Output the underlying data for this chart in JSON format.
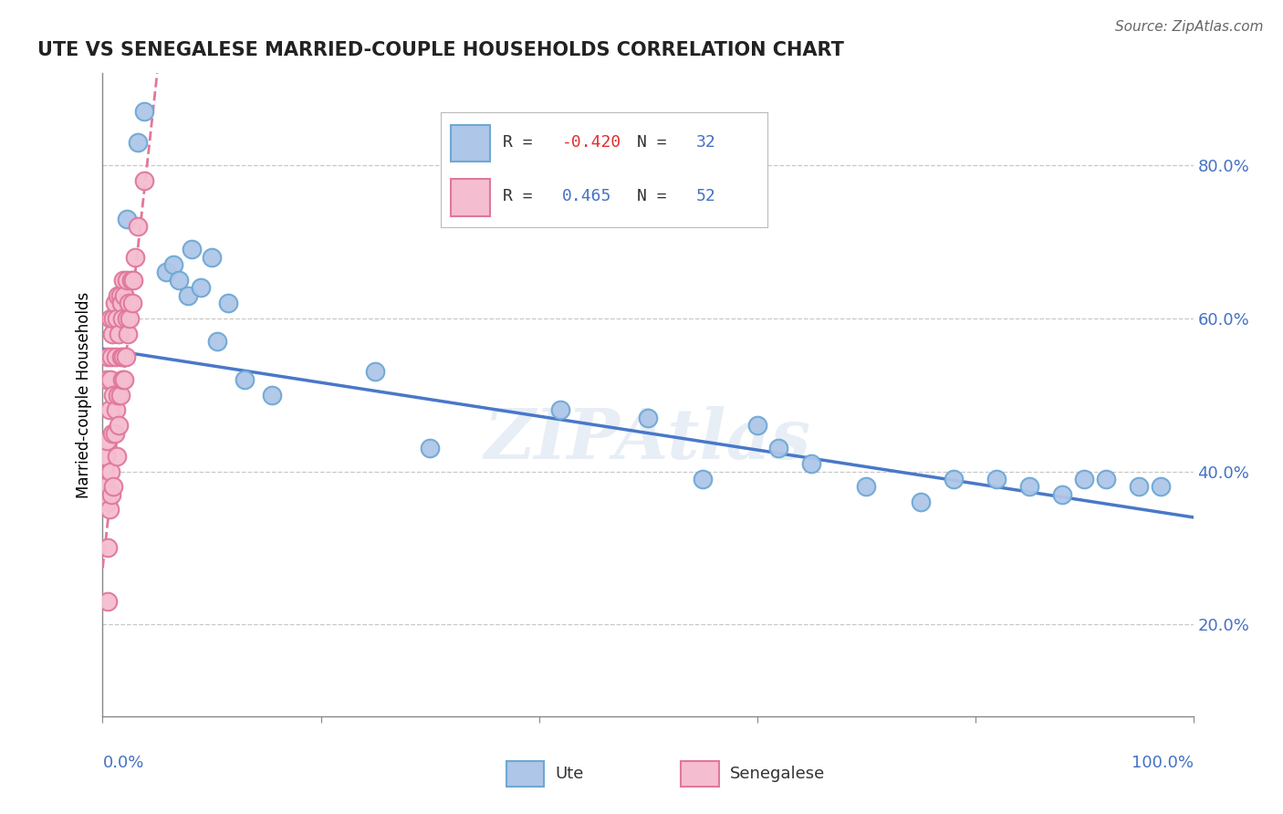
{
  "title": "UTE VS SENEGALESE MARRIED-COUPLE HOUSEHOLDS CORRELATION CHART",
  "source": "Source: ZipAtlas.com",
  "ylabel": "Married-couple Households",
  "yticks": [
    0.2,
    0.4,
    0.6,
    0.8
  ],
  "ytick_labels": [
    "20.0%",
    "40.0%",
    "60.0%",
    "80.0%"
  ],
  "xlim": [
    0.0,
    1.0
  ],
  "ylim": [
    0.08,
    0.92
  ],
  "legend_r_ute": "-0.420",
  "legend_n_ute": "32",
  "legend_r_sen": "0.465",
  "legend_n_sen": "52",
  "ute_color": "#aec6e8",
  "ute_edge_color": "#6fa8d5",
  "sen_color": "#f5bdd0",
  "sen_edge_color": "#e0789a",
  "trend_ute_color": "#4878c8",
  "trend_sen_color": "#e07898",
  "ute_x": [
    0.022,
    0.032,
    0.038,
    0.058,
    0.065,
    0.07,
    0.078,
    0.082,
    0.09,
    0.1,
    0.105,
    0.115,
    0.13,
    0.155,
    0.25,
    0.3,
    0.42,
    0.5,
    0.55,
    0.6,
    0.62,
    0.65,
    0.7,
    0.75,
    0.78,
    0.82,
    0.85,
    0.88,
    0.9,
    0.92,
    0.95,
    0.97
  ],
  "ute_y": [
    0.73,
    0.83,
    0.87,
    0.66,
    0.67,
    0.65,
    0.63,
    0.69,
    0.64,
    0.68,
    0.57,
    0.62,
    0.52,
    0.5,
    0.53,
    0.43,
    0.48,
    0.47,
    0.39,
    0.46,
    0.43,
    0.41,
    0.38,
    0.36,
    0.39,
    0.39,
    0.38,
    0.37,
    0.39,
    0.39,
    0.38,
    0.38
  ],
  "sen_x": [
    0.002,
    0.003,
    0.004,
    0.004,
    0.005,
    0.005,
    0.005,
    0.006,
    0.006,
    0.007,
    0.007,
    0.007,
    0.008,
    0.008,
    0.009,
    0.009,
    0.01,
    0.01,
    0.01,
    0.011,
    0.011,
    0.012,
    0.012,
    0.013,
    0.013,
    0.014,
    0.014,
    0.015,
    0.015,
    0.016,
    0.016,
    0.017,
    0.017,
    0.018,
    0.018,
    0.019,
    0.019,
    0.02,
    0.02,
    0.021,
    0.022,
    0.022,
    0.023,
    0.024,
    0.025,
    0.026,
    0.027,
    0.028,
    0.03,
    0.032,
    0.038,
    0.005
  ],
  "sen_y": [
    0.42,
    0.38,
    0.44,
    0.52,
    0.3,
    0.36,
    0.55,
    0.35,
    0.48,
    0.4,
    0.52,
    0.6,
    0.37,
    0.55,
    0.45,
    0.58,
    0.38,
    0.5,
    0.6,
    0.45,
    0.62,
    0.48,
    0.55,
    0.42,
    0.6,
    0.5,
    0.63,
    0.46,
    0.58,
    0.5,
    0.63,
    0.55,
    0.62,
    0.52,
    0.6,
    0.55,
    0.65,
    0.52,
    0.63,
    0.55,
    0.6,
    0.65,
    0.58,
    0.62,
    0.6,
    0.65,
    0.62,
    0.65,
    0.68,
    0.72,
    0.78,
    0.23
  ]
}
